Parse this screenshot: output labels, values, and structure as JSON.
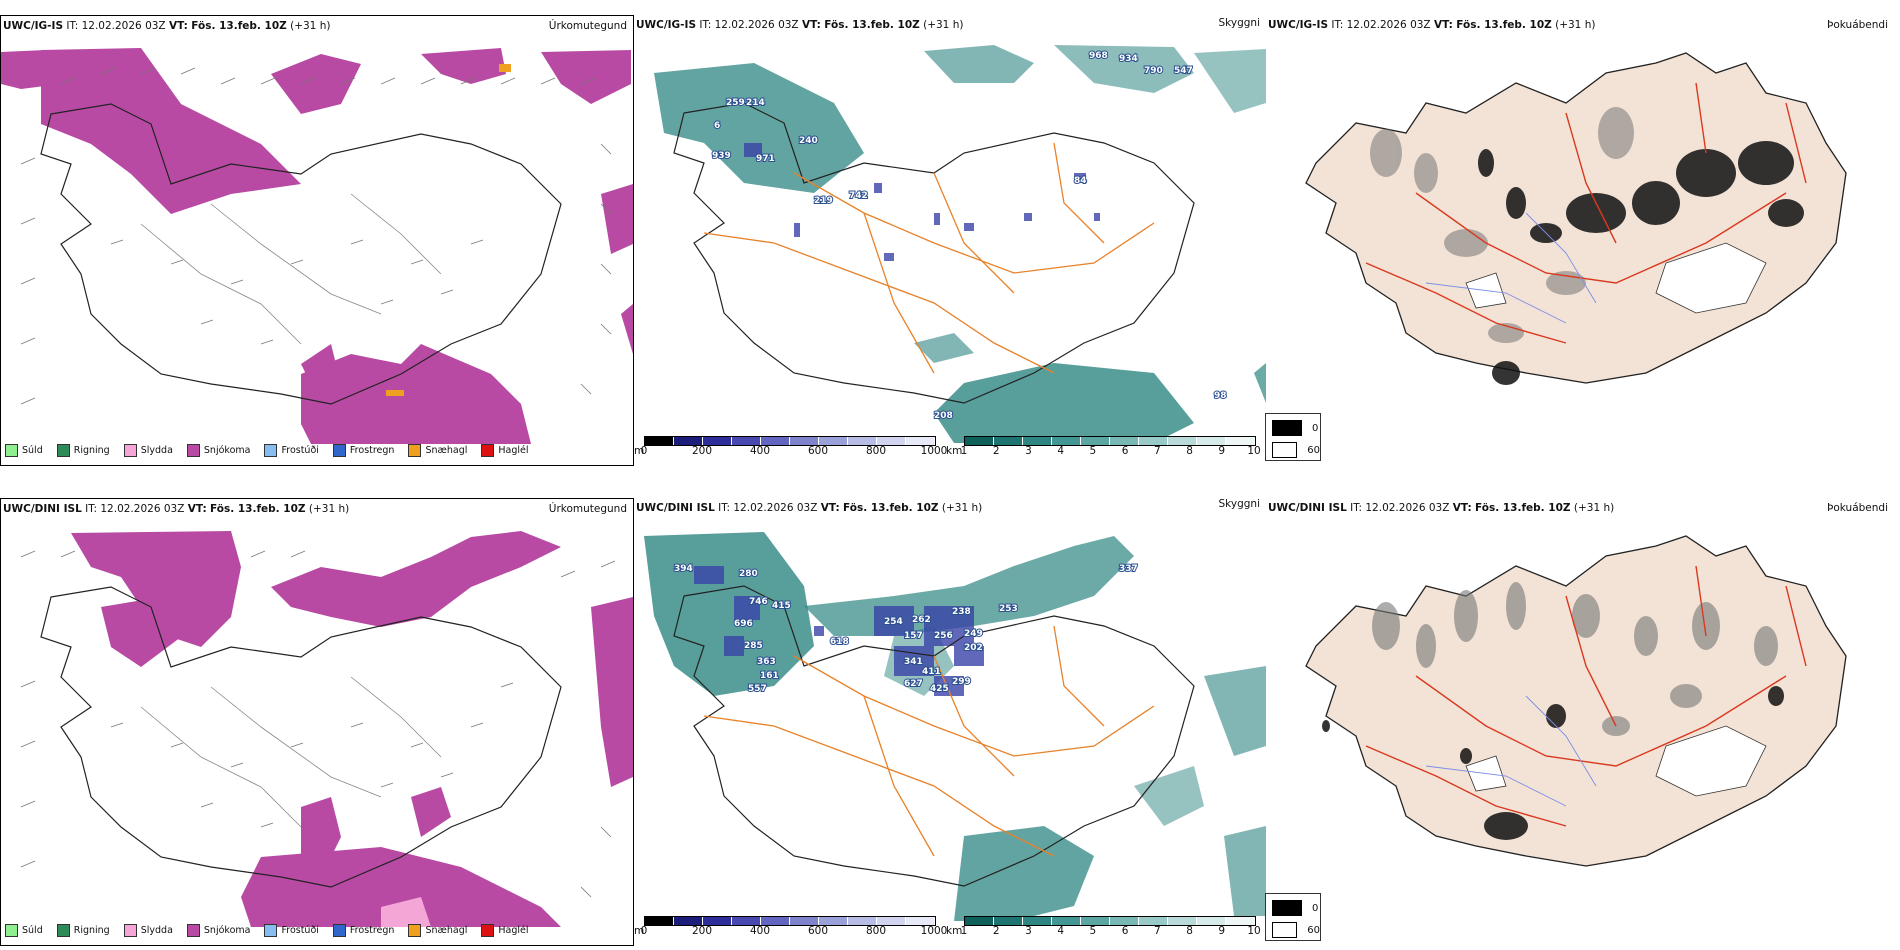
{
  "rows": [
    {
      "model": "UWC/IG-IS",
      "it_label": "IT:",
      "it_value": "12.02.2026 03Z",
      "vt_label": "VT:",
      "vt_value": "Fös. 13.feb. 10Z",
      "lead": "(+31 h)",
      "sky_labels": [
        "259",
        "214",
        "6",
        "939",
        "971",
        "240",
        "219",
        "742",
        "84",
        "968",
        "934",
        "790",
        "547",
        "208",
        "98"
      ],
      "sky_legend_labels": [
        "0",
        "60"
      ]
    },
    {
      "model": "UWC/DINI ISL",
      "it_label": "IT:",
      "it_value": "12.02.2026 03Z",
      "vt_label": "VT:",
      "vt_value": "Fös. 13.feb. 10Z",
      "lead": "(+31 h)",
      "sky_labels": [
        "394",
        "280",
        "746",
        "415",
        "696",
        "285",
        "363",
        "161",
        "557",
        "618",
        "254",
        "262",
        "238",
        "157",
        "256",
        "249",
        "202",
        "341",
        "411",
        "627",
        "425",
        "299",
        "253",
        "337"
      ],
      "sky_legend_labels": [
        "0",
        "60"
      ]
    }
  ],
  "panel_titles": {
    "precip_type": "Úrkomutegund",
    "clouds": "Skyggni",
    "fog": "Þokuábendi"
  },
  "precip_legend": [
    {
      "label": "Súld",
      "color": "#90ee90"
    },
    {
      "label": "Rigning",
      "color": "#2e8b57"
    },
    {
      "label": "Slydda",
      "color": "#f4a6d7"
    },
    {
      "label": "Snjókoma",
      "color": "#b84aa4"
    },
    {
      "label": "Frostúði",
      "color": "#87bdf0"
    },
    {
      "label": "Frostregn",
      "color": "#3366cc"
    },
    {
      "label": "Snæhagl",
      "color": "#f0a020"
    },
    {
      "label": "Haglél",
      "color": "#dd1111"
    }
  ],
  "height_bar": {
    "unit": "m",
    "ticks": [
      "0",
      "200",
      "400",
      "600",
      "800",
      "1000"
    ],
    "colors": [
      "#000000",
      "#1c1c7a",
      "#2d2e9a",
      "#4749b0",
      "#6266c0",
      "#7e83cc",
      "#9aa0d8",
      "#b6bce3",
      "#d0d4ee",
      "#e8eaf7"
    ]
  },
  "vis_bar": {
    "unit": "km",
    "ticks": [
      "1",
      "2",
      "3",
      "4",
      "5",
      "6",
      "7",
      "8",
      "9",
      "10"
    ],
    "colors": [
      "#0f5f5a",
      "#1e7470",
      "#2e8682",
      "#429693",
      "#5ba6a3",
      "#78b8b5",
      "#98cac8",
      "#b8dbd9",
      "#d6ebea",
      "#eef7f6"
    ]
  },
  "colors": {
    "snow": "#b84aa4",
    "teal": "#2e8682",
    "roads_orange": "#e8822a",
    "land": "#f3e3d6",
    "fog_dark": "#111111",
    "road_red": "#d9391f"
  }
}
